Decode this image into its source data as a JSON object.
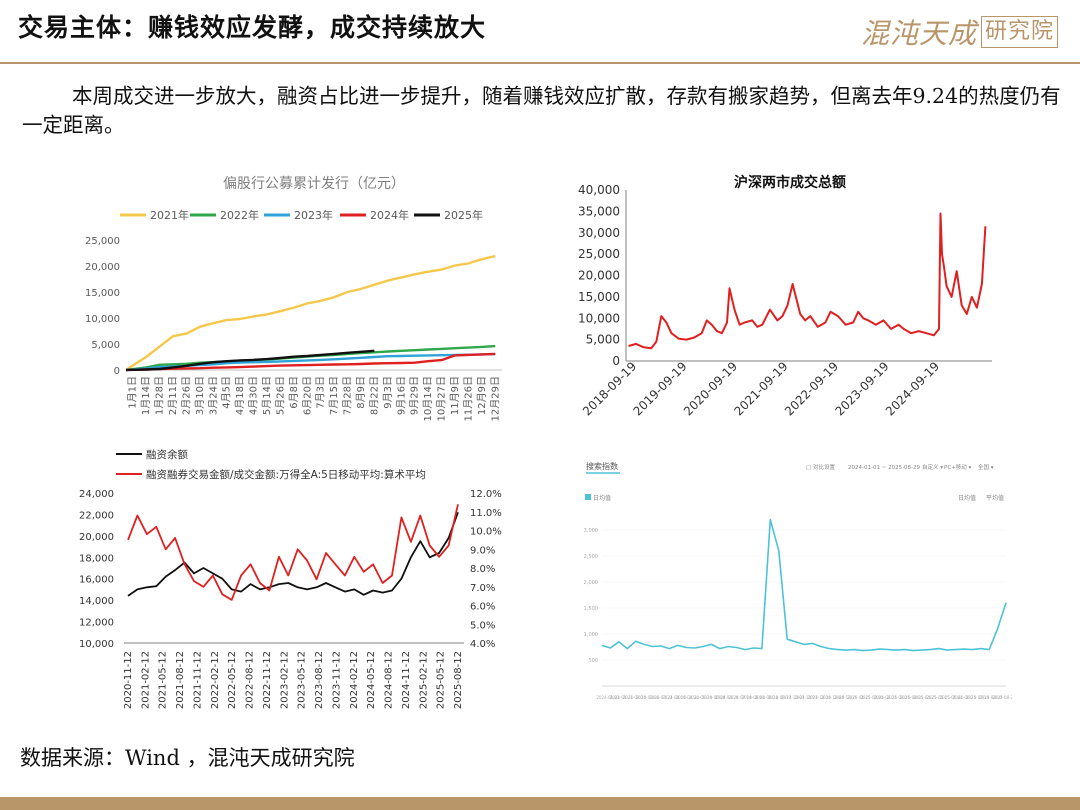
{
  "header": {
    "title": "交易主体：赚钱效应发酵，成交持续放大",
    "logo_script": "混沌天成",
    "logo_box": "研究院",
    "accent": "#b9956a"
  },
  "intro_text": "本周成交进一步放大，融资占比进一步提升，随着赚钱效应扩散，存款有搬家趋势，但离去年9.24的热度仍有一定距离。",
  "source_text": "数据来源：Wind ，混沌天成研究院",
  "chart_data": [
    {
      "type": "line",
      "title": "偏股行公募累计发行（亿元）",
      "legend_position": "top",
      "ylim": [
        0,
        25000
      ],
      "yticks": [
        "0",
        "5,000",
        "10,000",
        "15,000",
        "20,000",
        "25,000"
      ],
      "x_tick_labels": [
        "1月1日",
        "1月14日",
        "1月28日",
        "2月11日",
        "2月26日",
        "3月10日",
        "3月24日",
        "4月5日",
        "4月18日",
        "4月30日",
        "5月14日",
        "5月26日",
        "6月8日",
        "6月20日",
        "7月3日",
        "7月15日",
        "7月28日",
        "8月9日",
        "8月22日",
        "9月3日",
        "9月16日",
        "9月29日",
        "10月14日",
        "10月27日",
        "11月9日",
        "11月26日",
        "12月9日",
        "12月29日"
      ],
      "series": [
        {
          "name": "2021年",
          "color": "#f5c84c",
          "values": [
            0,
            2500,
            4500,
            6500,
            7000,
            8300,
            9000,
            9600,
            9800,
            10300,
            10700,
            11300,
            12000,
            12800,
            13300,
            14000,
            15000,
            15600,
            16400,
            17200,
            17800,
            18400,
            18900,
            19300,
            20100,
            20500,
            21300,
            21900
          ]
        },
        {
          "name": "2022年",
          "color": "#2ea84a",
          "values": [
            0,
            500,
            1000,
            1100,
            1200,
            1400,
            1500,
            1650,
            1800,
            1900,
            2000,
            2200,
            2400,
            2600,
            2750,
            2900,
            3100,
            3250,
            3400,
            3550,
            3700,
            3800,
            3950,
            4050,
            4200,
            4300,
            4450,
            4600
          ]
        },
        {
          "name": "2023年",
          "color": "#2fa3d8",
          "values": [
            0,
            300,
            550,
            650,
            800,
            950,
            1100,
            1300,
            1450,
            1500,
            1550,
            1650,
            1750,
            1850,
            1950,
            2050,
            2200,
            2350,
            2500,
            2650,
            2700,
            2750,
            2800,
            2850,
            2900,
            2950,
            3000,
            3050
          ]
        },
        {
          "name": "2024年",
          "color": "#e02020",
          "values": [
            0,
            100,
            200,
            250,
            300,
            350,
            450,
            500,
            550,
            650,
            750,
            850,
            900,
            950,
            1000,
            1050,
            1100,
            1150,
            1250,
            1300,
            1350,
            1400,
            1700,
            1900,
            2800,
            2900,
            3000,
            3100
          ]
        },
        {
          "name": "2025年",
          "color": "#111111",
          "values": [
            0,
            100,
            200,
            500,
            800,
            1200,
            1500,
            1700,
            1850,
            1950,
            2100,
            2300,
            2550,
            2700,
            2900,
            3100,
            3300,
            3500,
            3700,
            null,
            null,
            null,
            null,
            null,
            null,
            null,
            null,
            null
          ]
        }
      ]
    },
    {
      "type": "line",
      "title": "沪深两市成交总额",
      "ylim": [
        0,
        40000
      ],
      "yticks": [
        "0",
        "5,000",
        "10,000",
        "15,000",
        "20,000",
        "25,000",
        "30,000",
        "35,000",
        "40,000"
      ],
      "x_tick_labels": [
        "2018-09-19",
        "2019-09-19",
        "2020-09-19",
        "2021-09-19",
        "2022-09-19",
        "2023-09-19",
        "2024-09-19"
      ],
      "series": [
        {
          "name": "",
          "color": "#e02020",
          "x": [
            2018.55,
            2018.7,
            2018.85,
            2019.0,
            2019.1,
            2019.2,
            2019.3,
            2019.4,
            2019.55,
            2019.7,
            2019.85,
            2020.0,
            2020.1,
            2020.2,
            2020.3,
            2020.4,
            2020.5,
            2020.55,
            2020.65,
            2020.75,
            2020.85,
            2021.0,
            2021.1,
            2021.2,
            2021.35,
            2021.5,
            2021.6,
            2021.7,
            2021.8,
            2021.95,
            2022.05,
            2022.15,
            2022.3,
            2022.45,
            2022.55,
            2022.7,
            2022.85,
            2023.0,
            2023.1,
            2023.2,
            2023.3,
            2023.45,
            2023.6,
            2023.75,
            2023.9,
            2024.0,
            2024.15,
            2024.3,
            2024.45,
            2024.6,
            2024.7,
            2024.73,
            2024.76,
            2024.8,
            2024.85,
            2024.95,
            2025.05,
            2025.15,
            2025.25,
            2025.35,
            2025.45,
            2025.55,
            2025.62
          ],
          "values": [
            3500,
            4000,
            3200,
            3000,
            4500,
            10500,
            9000,
            6500,
            5200,
            5000,
            5500,
            6500,
            9500,
            8500,
            7000,
            6500,
            9000,
            17000,
            12000,
            8500,
            9000,
            9500,
            8000,
            8500,
            12000,
            9500,
            10500,
            13000,
            18000,
            11000,
            9500,
            10500,
            8000,
            9000,
            11500,
            10500,
            8500,
            9000,
            11500,
            10000,
            9500,
            8500,
            9500,
            7500,
            8500,
            7500,
            6500,
            7000,
            6500,
            6000,
            7500,
            34500,
            25000,
            22000,
            17500,
            15000,
            21000,
            13000,
            11000,
            15000,
            12500,
            18000,
            31500
          ]
        }
      ]
    },
    {
      "type": "line",
      "legend_position": "top-left",
      "left_ylim": [
        10000,
        24000
      ],
      "left_yticks": [
        "10,000",
        "12,000",
        "14,000",
        "16,000",
        "18,000",
        "20,000",
        "22,000",
        "24,000"
      ],
      "right_ylim": [
        4.0,
        12.0
      ],
      "right_yticks": [
        "4.0%",
        "5.0%",
        "6.0%",
        "7.0%",
        "8.0%",
        "9.0%",
        "10.0%",
        "11.0%",
        "12.0%"
      ],
      "x_tick_labels": [
        "2020-11-12",
        "2021-02-12",
        "2021-05-12",
        "2021-08-12",
        "2021-11-12",
        "2022-02-12",
        "2022-05-12",
        "2022-08-12",
        "2022-11-12",
        "2023-02-12",
        "2023-05-12",
        "2023-08-12",
        "2023-11-12",
        "2024-02-12",
        "2024-05-12",
        "2024-08-12",
        "2024-11-12",
        "2025-02-12",
        "2025-05-12",
        "2025-08-12"
      ],
      "series": [
        {
          "name": "融资余额",
          "color": "#111111",
          "axis": "left",
          "values": [
            14400,
            15000,
            15200,
            15300,
            16200,
            16800,
            17500,
            16500,
            17000,
            16500,
            16000,
            15000,
            14800,
            15500,
            15000,
            15200,
            15500,
            15600,
            15200,
            15000,
            15200,
            15600,
            15200,
            14800,
            15000,
            14500,
            14900,
            14700,
            14900,
            16000,
            18000,
            19500,
            18000,
            18400,
            19800,
            22200
          ]
        },
        {
          "name": "融资融券交易金额/成交金额:万得全A:5日移动平均:算术平均",
          "color": "#e02020",
          "axis": "right",
          "values": [
            9.5,
            10.8,
            9.8,
            10.2,
            9.0,
            9.6,
            8.2,
            7.3,
            7.0,
            7.6,
            6.6,
            6.3,
            7.6,
            8.2,
            7.2,
            6.8,
            8.6,
            7.6,
            9.0,
            8.4,
            7.4,
            8.8,
            8.2,
            7.6,
            8.6,
            7.8,
            8.2,
            7.2,
            7.6,
            10.7,
            9.4,
            10.8,
            9.2,
            8.6,
            9.2,
            11.4
          ]
        }
      ]
    },
    {
      "type": "line",
      "legend_position": "top-left",
      "tab_title": "搜索指数",
      "toolbar": [
        "□ 对比设置",
        "2024-01-01 ~ 2025-08-29",
        "自定义 ▾",
        "PC+移动 ▾",
        "全国 ▾"
      ],
      "legend_labels": [
        "日均值",
        "平均值"
      ],
      "ylim": [
        0,
        3500
      ],
      "yticks": [
        "0",
        "500",
        "1,000",
        "1,500",
        "2,000",
        "2,500",
        "3,000"
      ],
      "x_tick_labels": [
        "2024-01-01",
        "2024-01-21",
        "2024-02-10",
        "2024-03-01",
        "2024-03-21",
        "2024-04-10",
        "2024-04-30",
        "2024-05-20",
        "2024-06-09",
        "2024-06-29",
        "2024-07-19",
        "2024-08-08",
        "2024-08-28",
        "2024-09-17",
        "2024-10-07",
        "2024-10-27",
        "2024-11-16",
        "2024-12-06",
        "2024-12-26",
        "2025-01-15",
        "2025-02-04",
        "2025-02-24",
        "2025-03-16",
        "2025-04-05",
        "2025-04-25",
        "2025-05-15",
        "2025-06-04",
        "2025-06-24",
        "2025-07-14",
        "2025-08-03",
        "2025-08-23"
      ],
      "series": [
        {
          "name": "",
          "color": "#4ec3d8",
          "values": [
            780,
            730,
            850,
            720,
            860,
            800,
            760,
            770,
            720,
            780,
            740,
            730,
            760,
            800,
            720,
            760,
            740,
            700,
            730,
            720,
            3200,
            2600,
            900,
            850,
            800,
            820,
            760,
            720,
            700,
            690,
            700,
            680,
            690,
            710,
            700,
            690,
            700,
            680,
            690,
            700,
            720,
            690,
            700,
            710,
            700,
            720,
            700,
            1100,
            1600
          ]
        }
      ]
    }
  ]
}
